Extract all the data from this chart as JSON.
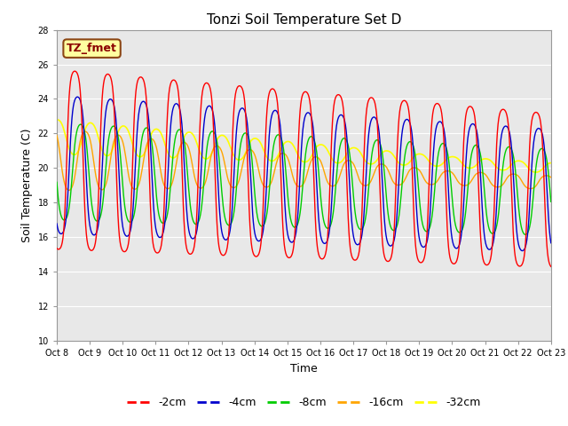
{
  "title": "Tonzi Soil Temperature Set D",
  "xlabel": "Time",
  "ylabel": "Soil Temperature (C)",
  "ylim": [
    10,
    28
  ],
  "yticks": [
    10,
    12,
    14,
    16,
    18,
    20,
    22,
    24,
    26,
    28
  ],
  "annotation_text": "TZ_fmet",
  "annotation_color": "#8B0000",
  "annotation_bg": "#FFFFA0",
  "annotation_border": "#8B4513",
  "colors": {
    "-2cm": "#FF0000",
    "-4cm": "#0000CD",
    "-8cm": "#00CC00",
    "-16cm": "#FFA500",
    "-32cm": "#FFFF00"
  },
  "legend_labels": [
    "-2cm",
    "-4cm",
    "-8cm",
    "-16cm",
    "-32cm"
  ],
  "x_tick_labels": [
    "Oct 8",
    "Oct 9",
    "Oct 10",
    "Oct 11",
    "Oct 12",
    "Oct 13",
    "Oct 14",
    "Oct 15",
    "Oct 16",
    "Oct 17",
    "Oct 18",
    "Oct 19",
    "Oct 20",
    "Oct 21",
    "Oct 22",
    "Oct 23"
  ],
  "background_color": "#E8E8E8",
  "n_days": 15,
  "n_per_day": 48
}
